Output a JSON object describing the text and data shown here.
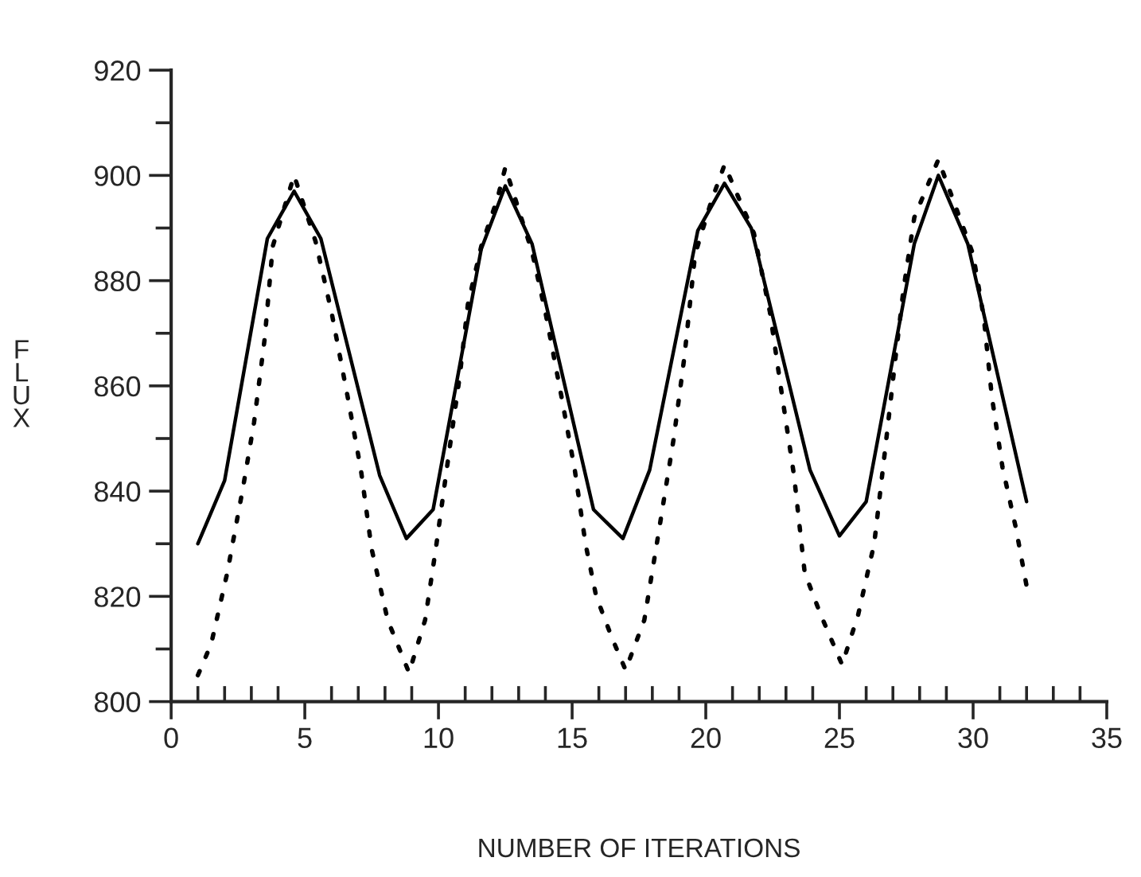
{
  "chart_data": {
    "type": "line",
    "xlabel": "NUMBER OF ITERATIONS",
    "ylabel": "FLUX",
    "xlim": [
      0,
      35
    ],
    "ylim": [
      800,
      920
    ],
    "xticks": [
      0,
      {
        "value": 1,
        "label": null
      },
      {
        "value": 2,
        "label": null
      },
      {
        "value": 3,
        "label": null
      },
      {
        "value": 4,
        "label": null
      },
      5,
      {
        "value": 6,
        "label": null
      },
      {
        "value": 7,
        "label": null
      },
      {
        "value": 8,
        "label": null
      },
      {
        "value": 9,
        "label": null
      },
      10,
      {
        "value": 11,
        "label": null
      },
      {
        "value": 12,
        "label": null
      },
      {
        "value": 13,
        "label": null
      },
      {
        "value": 14,
        "label": null
      },
      15,
      {
        "value": 16,
        "label": null
      },
      {
        "value": 17,
        "label": null
      },
      {
        "value": 18,
        "label": null
      },
      {
        "value": 19,
        "label": null
      },
      20,
      {
        "value": 21,
        "label": null
      },
      {
        "value": 22,
        "label": null
      },
      {
        "value": 23,
        "label": null
      },
      {
        "value": 24,
        "label": null
      },
      25,
      {
        "value": 26,
        "label": null
      },
      {
        "value": 27,
        "label": null
      },
      {
        "value": 28,
        "label": null
      },
      {
        "value": 29,
        "label": null
      },
      30,
      {
        "value": 31,
        "label": null
      },
      {
        "value": 32,
        "label": null
      },
      {
        "value": 33,
        "label": null
      },
      {
        "value": 34,
        "label": null
      },
      35
    ],
    "yticks": [
      800,
      {
        "value": 810,
        "label": null
      },
      820,
      {
        "value": 830,
        "label": null
      },
      840,
      {
        "value": 850,
        "label": null
      },
      860,
      {
        "value": 870,
        "label": null
      },
      880,
      {
        "value": 890,
        "label": null
      },
      900,
      {
        "value": 910,
        "label": null
      },
      920
    ],
    "grid": false,
    "series": [
      {
        "color": "#000000",
        "line_style": "solid",
        "x": [
          1,
          2,
          3.6,
          4.6,
          5.6,
          7.8,
          8.8,
          9.8,
          11.6,
          12.5,
          13.5,
          15.8,
          16.9,
          17.9,
          19.7,
          20.7,
          21.7,
          23.9,
          25,
          26,
          27.8,
          28.7,
          29.8,
          32
        ],
        "values": [
          830,
          842,
          888,
          897,
          888,
          843,
          831,
          836.5,
          886,
          898,
          887,
          836.5,
          831,
          844,
          889.5,
          898.5,
          890,
          844,
          831.5,
          838,
          887,
          900,
          887,
          838
        ]
      },
      {
        "color": "#000000",
        "line_style": "dotted",
        "x": [
          1,
          1.5,
          2.1,
          2.7,
          3.1,
          3.5,
          3.8,
          4.3,
          4.6,
          5.4,
          6,
          6.6,
          7.1,
          7.5,
          8.1,
          8.9,
          9.5,
          9.9,
          10.4,
          10.8,
          11.1,
          11.6,
          12.2,
          12.5,
          13.5,
          14,
          14.6,
          15.1,
          15.5,
          15.9,
          16.5,
          17,
          17.7,
          18.2,
          18.8,
          19.2,
          19.6,
          20.2,
          20.7,
          21.8,
          22.4,
          22.8,
          23.3,
          23.7,
          24.3,
          25.1,
          25.7,
          26.3,
          26.7,
          27.1,
          27.4,
          27.8,
          28.7,
          30,
          30.4,
          30.7,
          31.1,
          31.6,
          32
        ],
        "values": [
          805,
          811,
          824.5,
          841,
          853,
          869,
          886.5,
          895,
          900,
          887.5,
          874,
          858,
          844,
          829,
          815.5,
          805.5,
          815.5,
          829,
          847.5,
          862,
          875.5,
          886.5,
          895.5,
          901.5,
          885.5,
          874,
          858,
          844,
          830,
          820,
          812,
          806,
          815.5,
          831,
          850,
          865.5,
          885,
          895,
          902,
          889,
          874,
          860,
          843,
          824.5,
          816.5,
          807,
          816.5,
          830,
          847.5,
          865.5,
          878.5,
          892,
          903,
          885,
          873,
          858,
          844.5,
          833,
          822
        ]
      }
    ]
  }
}
